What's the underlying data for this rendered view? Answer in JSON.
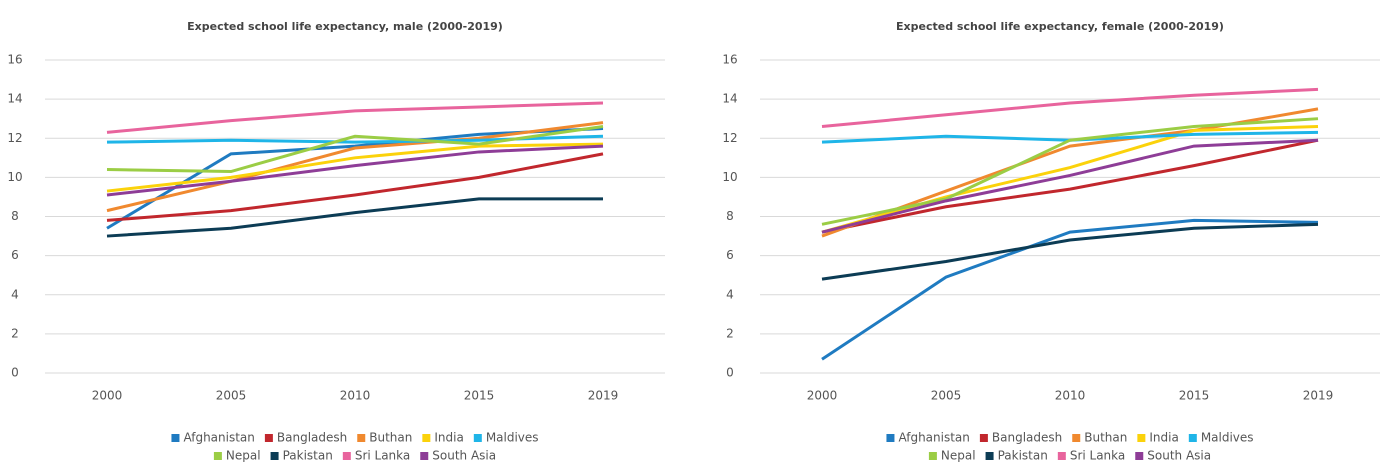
{
  "chart_data": [
    {
      "type": "line",
      "title": "Expected school life expectancy, male (2000-2019)",
      "categories": [
        "2000",
        "2005",
        "2010",
        "2015",
        "2019"
      ],
      "ylim": [
        0,
        16
      ],
      "yticks": [
        0,
        2,
        4,
        6,
        8,
        10,
        12,
        14,
        16
      ],
      "grid": true,
      "series": [
        {
          "name": "Afghanistan",
          "color": "#1f7bc1",
          "values": [
            7.4,
            11.2,
            11.6,
            12.2,
            12.5
          ]
        },
        {
          "name": "Bangladesh",
          "color": "#c1272d",
          "values": [
            7.8,
            8.3,
            9.1,
            10.0,
            11.2
          ]
        },
        {
          "name": "Buthan",
          "color": "#f0892f",
          "values": [
            8.3,
            9.8,
            11.5,
            12.0,
            12.8
          ]
        },
        {
          "name": "India",
          "color": "#fbd20b",
          "values": [
            9.3,
            10.0,
            11.0,
            11.6,
            11.7
          ]
        },
        {
          "name": "Maldives",
          "color": "#1fb5e8",
          "values": [
            11.8,
            11.9,
            11.8,
            11.9,
            12.1
          ]
        },
        {
          "name": "Nepal",
          "color": "#9bcd45",
          "values": [
            10.4,
            10.3,
            12.1,
            11.7,
            12.6
          ]
        },
        {
          "name": "Pakistan",
          "color": "#0c3c55",
          "values": [
            7.0,
            7.4,
            8.2,
            8.9,
            8.9
          ]
        },
        {
          "name": "Sri Lanka",
          "color": "#e8649d",
          "values": [
            12.3,
            12.9,
            13.4,
            13.6,
            13.8
          ]
        },
        {
          "name": "South Asia",
          "color": "#8e3d97",
          "values": [
            9.1,
            9.8,
            10.6,
            11.3,
            11.6
          ]
        }
      ]
    },
    {
      "type": "line",
      "title": "Expected school life expectancy, female (2000-2019)",
      "categories": [
        "2000",
        "2005",
        "2010",
        "2015",
        "2019"
      ],
      "ylim": [
        0,
        16
      ],
      "yticks": [
        0,
        2,
        4,
        6,
        8,
        10,
        12,
        14,
        16
      ],
      "grid": true,
      "series": [
        {
          "name": "Afghanistan",
          "color": "#1f7bc1",
          "values": [
            0.7,
            4.9,
            7.2,
            7.8,
            7.7
          ]
        },
        {
          "name": "Bangladesh",
          "color": "#c1272d",
          "values": [
            7.2,
            8.5,
            9.4,
            10.6,
            11.9
          ]
        },
        {
          "name": "Buthan",
          "color": "#f0892f",
          "values": [
            7.0,
            9.3,
            11.6,
            12.4,
            13.5
          ]
        },
        {
          "name": "India",
          "color": "#fbd20b",
          "values": [
            7.2,
            9.0,
            10.5,
            12.4,
            12.6
          ]
        },
        {
          "name": "Maldives",
          "color": "#1fb5e8",
          "values": [
            11.8,
            12.1,
            11.9,
            12.2,
            12.3
          ]
        },
        {
          "name": "Nepal",
          "color": "#9bcd45",
          "values": [
            7.6,
            8.9,
            11.9,
            12.6,
            13.0
          ]
        },
        {
          "name": "Pakistan",
          "color": "#0c3c55",
          "values": [
            4.8,
            5.7,
            6.8,
            7.4,
            7.6
          ]
        },
        {
          "name": "Sri Lanka",
          "color": "#e8649d",
          "values": [
            12.6,
            13.2,
            13.8,
            14.2,
            14.5
          ]
        },
        {
          "name": "South Asia",
          "color": "#8e3d97",
          "values": [
            7.2,
            8.8,
            10.1,
            11.6,
            11.9
          ]
        }
      ]
    }
  ]
}
